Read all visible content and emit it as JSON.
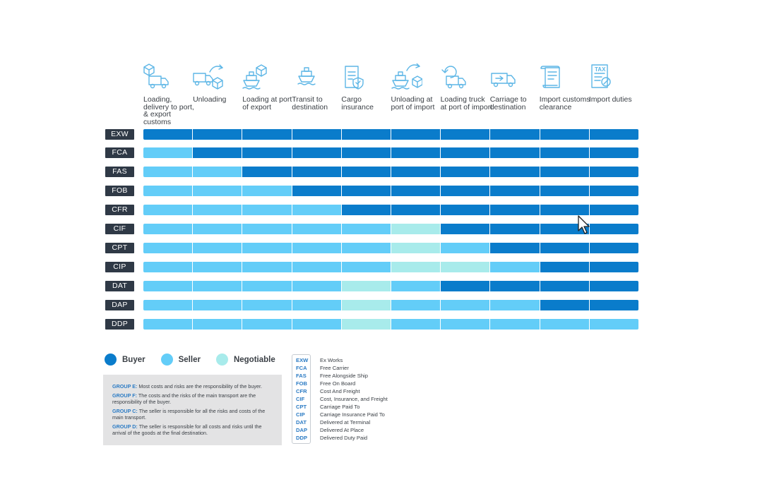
{
  "columns": [
    {
      "label": "Loading, delivery to port, & export customs",
      "icon": "box-truck-icon"
    },
    {
      "label": "Unloading",
      "icon": "truck-unload-icon"
    },
    {
      "label": "Loading at port of export",
      "icon": "ship-load-icon"
    },
    {
      "label": "Transit to destination",
      "icon": "ship-icon"
    },
    {
      "label": "Cargo insurance",
      "icon": "insurance-document-icon"
    },
    {
      "label": "Unloading at port of import",
      "icon": "ship-unload-icon"
    },
    {
      "label": "Loading truck at port of import",
      "icon": "truck-load-icon"
    },
    {
      "label": "Carriage to destination",
      "icon": "delivery-truck-icon"
    },
    {
      "label": "Import customs clearance",
      "icon": "customs-scroll-icon"
    },
    {
      "label": "Import duties",
      "icon": "tax-document-icon"
    }
  ],
  "colors": {
    "B": "#0a7ccb",
    "S": "#63cdf8",
    "N": "#a8ebeb",
    "label_bg": "#2f3946",
    "accent": "#2b7bc4"
  },
  "rows": [
    {
      "code": "EXW",
      "cells": [
        "B",
        "B",
        "B",
        "B",
        "B",
        "B",
        "B",
        "B",
        "B",
        "B"
      ]
    },
    {
      "code": "FCA",
      "cells": [
        "S",
        "B",
        "B",
        "B",
        "B",
        "B",
        "B",
        "B",
        "B",
        "B"
      ]
    },
    {
      "code": "FAS",
      "cells": [
        "S",
        "S",
        "B",
        "B",
        "B",
        "B",
        "B",
        "B",
        "B",
        "B"
      ]
    },
    {
      "code": "FOB",
      "cells": [
        "S",
        "S",
        "S",
        "B",
        "B",
        "B",
        "B",
        "B",
        "B",
        "B"
      ]
    },
    {
      "code": "CFR",
      "cells": [
        "S",
        "S",
        "S",
        "S",
        "B",
        "B",
        "B",
        "B",
        "B",
        "B"
      ]
    },
    {
      "code": "CIF",
      "cells": [
        "S",
        "S",
        "S",
        "S",
        "S",
        "N",
        "B",
        "B",
        "B",
        "B"
      ]
    },
    {
      "code": "CPT",
      "cells": [
        "S",
        "S",
        "S",
        "S",
        "S",
        "N",
        "S",
        "B",
        "B",
        "B"
      ]
    },
    {
      "code": "CIP",
      "cells": [
        "S",
        "S",
        "S",
        "S",
        "S",
        "N",
        "N",
        "S",
        "B",
        "B"
      ]
    },
    {
      "code": "DAT",
      "cells": [
        "S",
        "S",
        "S",
        "S",
        "N",
        "S",
        "B",
        "B",
        "B",
        "B"
      ]
    },
    {
      "code": "DAP",
      "cells": [
        "S",
        "S",
        "S",
        "S",
        "N",
        "S",
        "S",
        "S",
        "B",
        "B"
      ]
    },
    {
      "code": "DDP",
      "cells": [
        "S",
        "S",
        "S",
        "S",
        "N",
        "S",
        "S",
        "S",
        "S",
        "S"
      ]
    }
  ],
  "legend": [
    {
      "label": "Buyer",
      "key": "B"
    },
    {
      "label": "Seller",
      "key": "S"
    },
    {
      "label": "Negotiable",
      "key": "N"
    }
  ],
  "groups": [
    {
      "name": "GROUP E:",
      "text": "Most costs and risks are the responsibility of the buyer."
    },
    {
      "name": "GROUP F:",
      "text": "The costs and the risks of the main transport are the responsibility of the buyer."
    },
    {
      "name": "GROUP C:",
      "text": "The seller is responsible for all the risks and costs of the main transport."
    },
    {
      "name": "GROUP D:",
      "text": "The seller is responsible for all costs and risks until the arrival of the goods at the final destination."
    }
  ],
  "abbreviations": [
    {
      "code": "EXW",
      "name": "Ex Works"
    },
    {
      "code": "FCA",
      "name": "Free Carrier"
    },
    {
      "code": "FAS",
      "name": "Free Alongside Ship"
    },
    {
      "code": "FOB",
      "name": "Free On Board"
    },
    {
      "code": "CFR",
      "name": "Cost And Freight"
    },
    {
      "code": "CIF",
      "name": "Cost, Insurance, and Freight"
    },
    {
      "code": "CPT",
      "name": "Carriage Paid To"
    },
    {
      "code": "CIP",
      "name": "Carriage Insurance Paid To"
    },
    {
      "code": "DAT",
      "name": "Delivered at Terminal"
    },
    {
      "code": "DAP",
      "name": "Delivered At Place"
    },
    {
      "code": "DDP",
      "name": "Delivered Duty Paid"
    }
  ]
}
